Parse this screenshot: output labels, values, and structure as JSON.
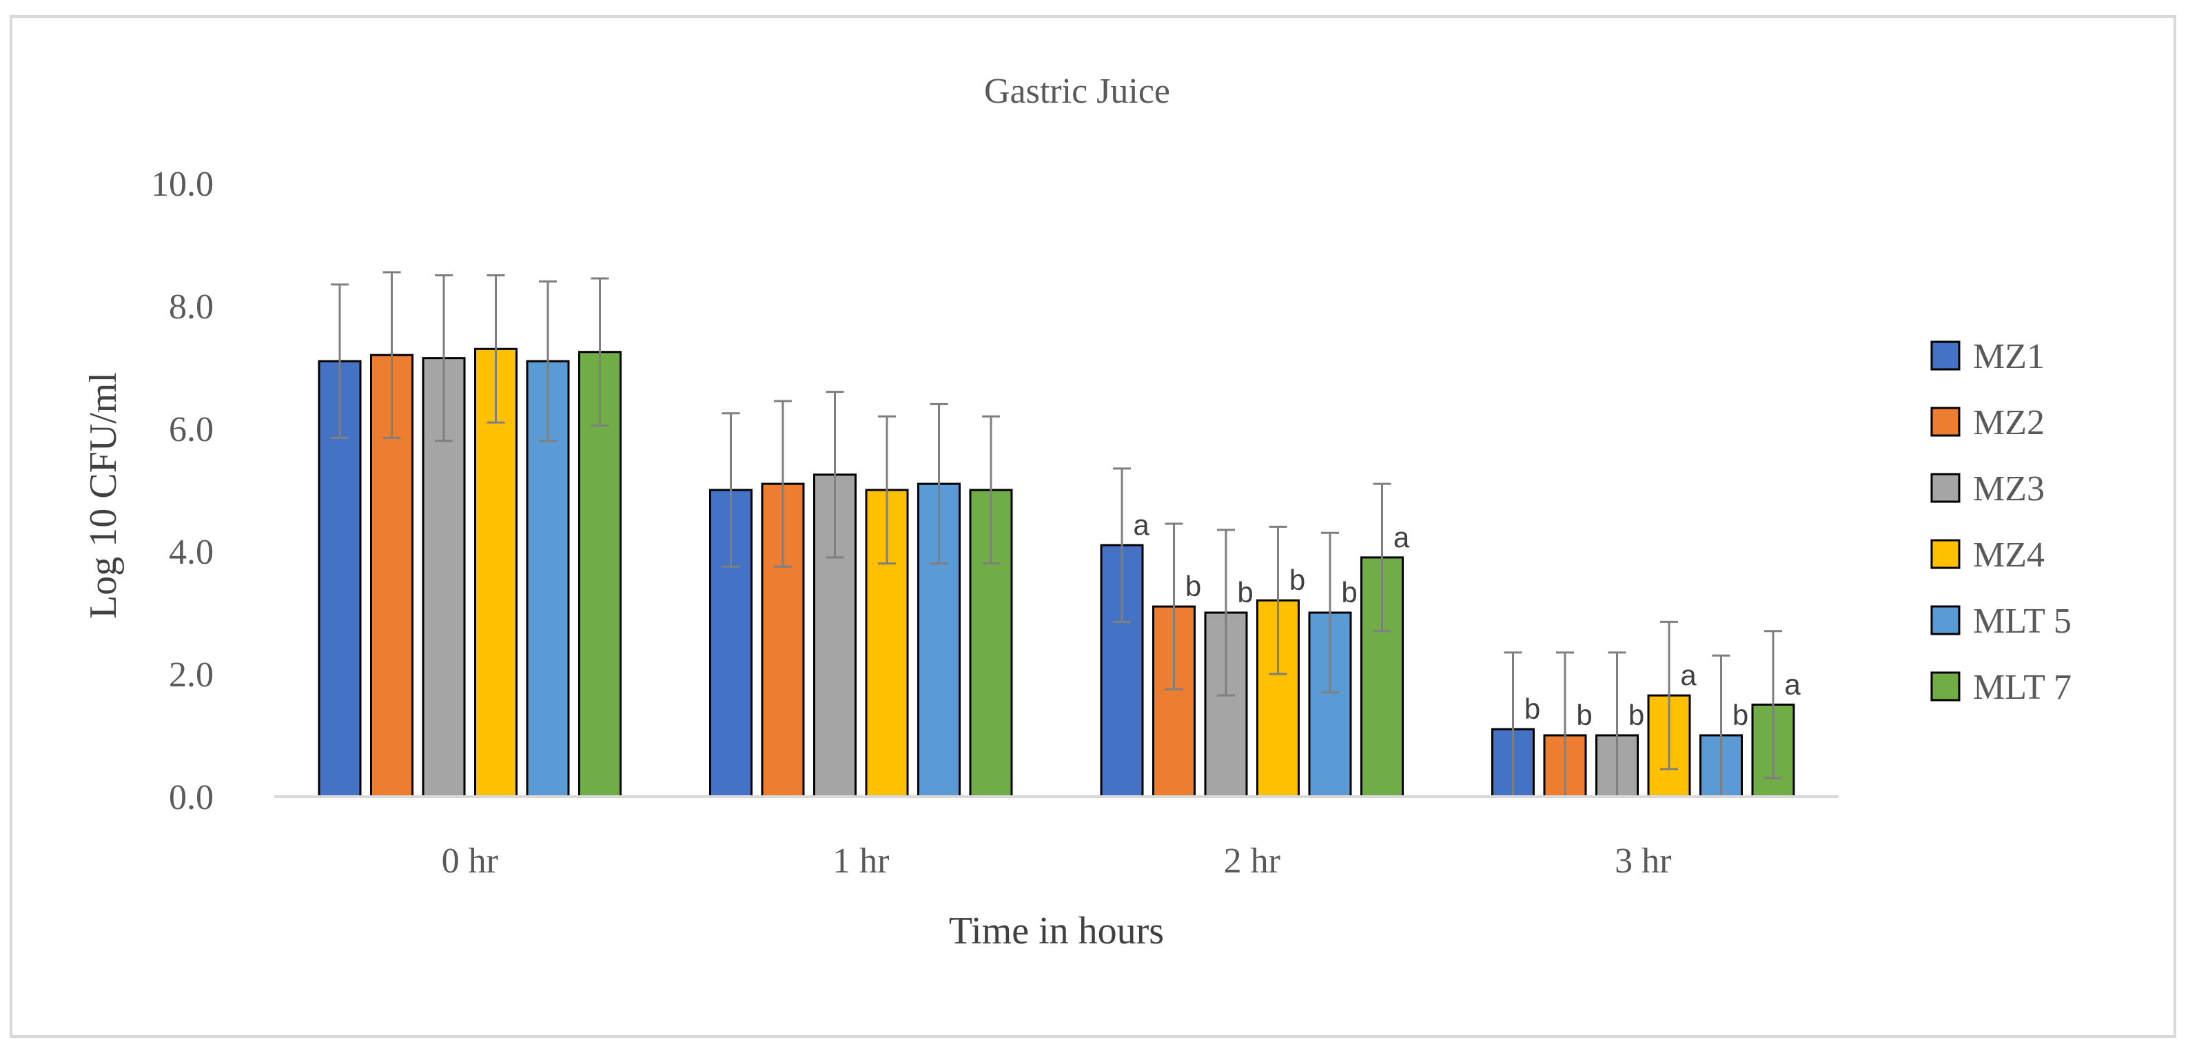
{
  "chart_data": {
    "type": "bar",
    "title": "Gastric Juice",
    "xlabel": "Time in hours",
    "ylabel": "Log 10 CFU/ml",
    "ylim": [
      0,
      10
    ],
    "yticks": [
      "0.0",
      "2.0",
      "4.0",
      "6.0",
      "8.0",
      "10.0"
    ],
    "ytick_values": [
      0,
      2,
      4,
      6,
      8,
      10
    ],
    "grid": false,
    "legend_position": "right",
    "categories": [
      "0 hr",
      "1 hr",
      "2 hr",
      "3 hr"
    ],
    "series": [
      {
        "name": "MZ1",
        "color": "#4472c4",
        "values": [
          7.1,
          5.0,
          4.1,
          1.1
        ],
        "errors": [
          1.25,
          1.25,
          1.25,
          1.25
        ],
        "letters": [
          "",
          "",
          "a",
          "b"
        ]
      },
      {
        "name": "MZ2",
        "color": "#ed7d31",
        "values": [
          7.2,
          5.1,
          3.1,
          1.0
        ],
        "errors": [
          1.35,
          1.35,
          1.35,
          1.35
        ],
        "letters": [
          "",
          "",
          "b",
          "b"
        ]
      },
      {
        "name": "MZ3",
        "color": "#a5a5a5",
        "values": [
          7.15,
          5.25,
          3.0,
          1.0
        ],
        "errors": [
          1.35,
          1.35,
          1.35,
          1.35
        ],
        "letters": [
          "",
          "",
          "b",
          "b"
        ]
      },
      {
        "name": "MZ4",
        "color": "#ffc000",
        "values": [
          7.3,
          5.0,
          3.2,
          1.65
        ],
        "errors": [
          1.2,
          1.2,
          1.2,
          1.2
        ],
        "letters": [
          "",
          "",
          "b",
          "a"
        ]
      },
      {
        "name": "MLT 5",
        "color": "#5b9bd5",
        "values": [
          7.1,
          5.1,
          3.0,
          1.0
        ],
        "errors": [
          1.3,
          1.3,
          1.3,
          1.3
        ],
        "letters": [
          "",
          "",
          "b",
          "b"
        ]
      },
      {
        "name": "MLT 7",
        "color": "#70ad47",
        "values": [
          7.25,
          5.0,
          3.9,
          1.5
        ],
        "errors": [
          1.2,
          1.2,
          1.2,
          1.2
        ],
        "letters": [
          "",
          "",
          "a",
          "a"
        ]
      }
    ]
  }
}
